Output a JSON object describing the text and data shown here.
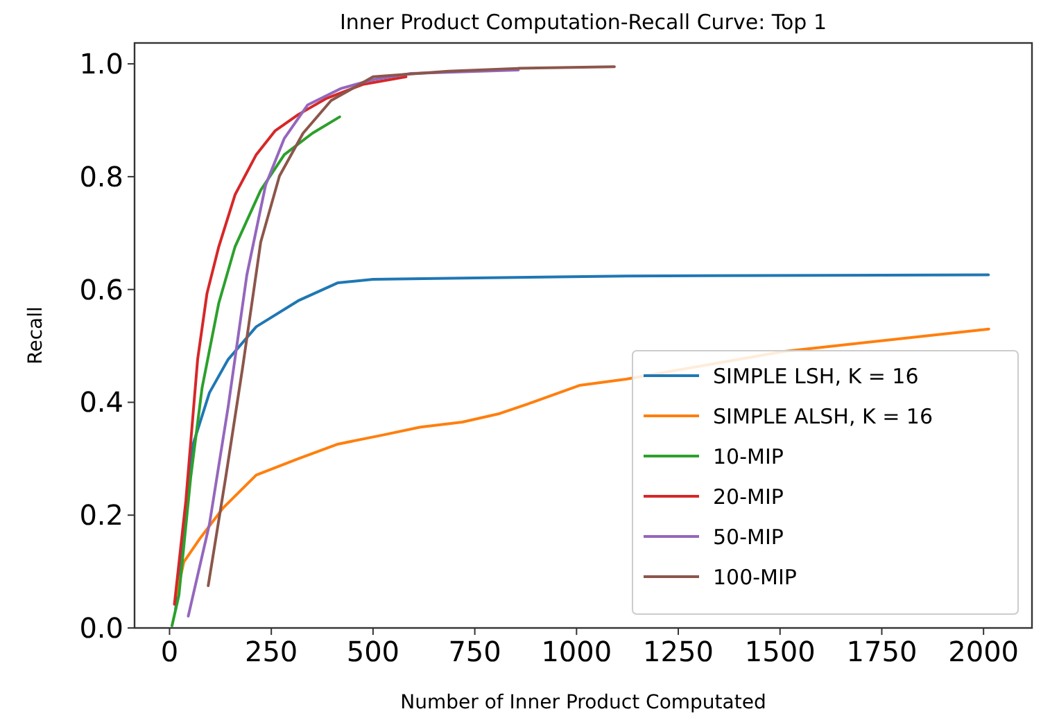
{
  "chart_data": {
    "type": "line",
    "title": "Inner Product Computation-Recall Curve: Top 1",
    "xlabel": "Number of Inner Product Computated",
    "ylabel": "Recall",
    "xlim": [
      -86,
      2119
    ],
    "ylim": [
      0,
      1.037
    ],
    "xticks": [
      0,
      250,
      500,
      750,
      1000,
      1250,
      1500,
      1750,
      2000
    ],
    "yticks": [
      {
        "value": 0,
        "label": "0.0"
      },
      0.2,
      0.4,
      0.6,
      0.8,
      {
        "value": 1,
        "label": "1.0"
      }
    ],
    "legend": "bottom right",
    "grid": false,
    "line_style": "solid",
    "marker": "none",
    "series": [
      {
        "name": "SIMPLE LSH, K = 16",
        "color": "#1f77b4",
        "x": [
          15,
          35,
          58,
          98,
          144,
          213,
          316,
          414,
          500,
          685,
          1122,
          2012
        ],
        "values": [
          0.033,
          0.184,
          0.326,
          0.417,
          0.476,
          0.534,
          0.58,
          0.612,
          0.618,
          0.62,
          0.624,
          0.626
        ]
      },
      {
        "name": "SIMPLE ALSH, K = 16",
        "color": "#ff7f0e",
        "x": [
          17,
          35,
          75,
          132,
          213,
          316,
          414,
          524,
          616,
          719,
          811,
          892,
          1007,
          1122,
          1507,
          2013
        ],
        "values": [
          0.058,
          0.117,
          0.159,
          0.213,
          0.271,
          0.3,
          0.326,
          0.342,
          0.356,
          0.365,
          0.38,
          0.4,
          0.43,
          0.441,
          0.49,
          0.53
        ]
      },
      {
        "name": "10-MIP",
        "color": "#2ca02c",
        "x": [
          6,
          23,
          52,
          80,
          121,
          161,
          224,
          282,
          351,
          418
        ],
        "values": [
          0.004,
          0.058,
          0.267,
          0.426,
          0.576,
          0.676,
          0.776,
          0.839,
          0.877,
          0.906
        ]
      },
      {
        "name": "20-MIP",
        "color": "#d62728",
        "x": [
          12,
          40,
          69,
          92,
          121,
          161,
          213,
          259,
          316,
          386,
          477,
          581
        ],
        "values": [
          0.042,
          0.225,
          0.476,
          0.593,
          0.676,
          0.768,
          0.839,
          0.881,
          0.91,
          0.939,
          0.964,
          0.977
        ]
      },
      {
        "name": "50-MIP",
        "color": "#9467bd",
        "x": [
          46,
          98,
          144,
          190,
          236,
          282,
          339,
          420,
          500,
          593,
          857
        ],
        "values": [
          0.021,
          0.184,
          0.392,
          0.626,
          0.785,
          0.868,
          0.927,
          0.956,
          0.972,
          0.983,
          0.989
        ]
      },
      {
        "name": "100-MIP",
        "color": "#8c564b",
        "x": [
          95,
          138,
          179,
          224,
          270,
          328,
          397,
          500,
          685,
          857,
          1093
        ],
        "values": [
          0.075,
          0.267,
          0.459,
          0.684,
          0.801,
          0.877,
          0.935,
          0.977,
          0.987,
          0.992,
          0.995
        ]
      }
    ]
  }
}
